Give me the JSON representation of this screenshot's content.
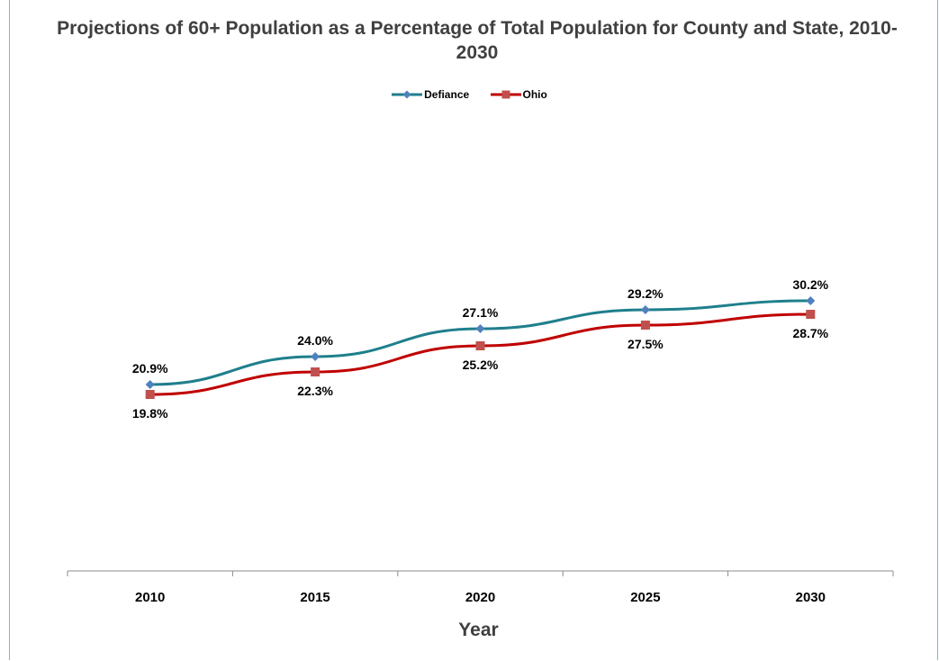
{
  "chart_data": {
    "type": "line",
    "title": "Projections of 60+ Population as a Percentage of Total Population for County and State, 2010-2030",
    "xlabel": "Year",
    "ylabel": "",
    "categories": [
      "2010",
      "2015",
      "2020",
      "2025",
      "2030"
    ],
    "series": [
      {
        "name": "Defiance",
        "values": [
          20.9,
          24.0,
          27.1,
          29.2,
          30.2
        ],
        "labels": [
          "20.9%",
          "24.0%",
          "27.1%",
          "29.2%",
          "30.2%"
        ],
        "color": "#1f7f8c",
        "marker_color": "#4f81bd",
        "marker": "diamond"
      },
      {
        "name": "Ohio",
        "values": [
          19.8,
          22.3,
          25.2,
          27.5,
          28.7
        ],
        "labels": [
          "19.8%",
          "22.3%",
          "25.2%",
          "27.5%",
          "28.7%"
        ],
        "color": "#c00000",
        "marker_color": "#c0504d",
        "marker": "square"
      }
    ],
    "grid": false,
    "legend_position": "top"
  }
}
